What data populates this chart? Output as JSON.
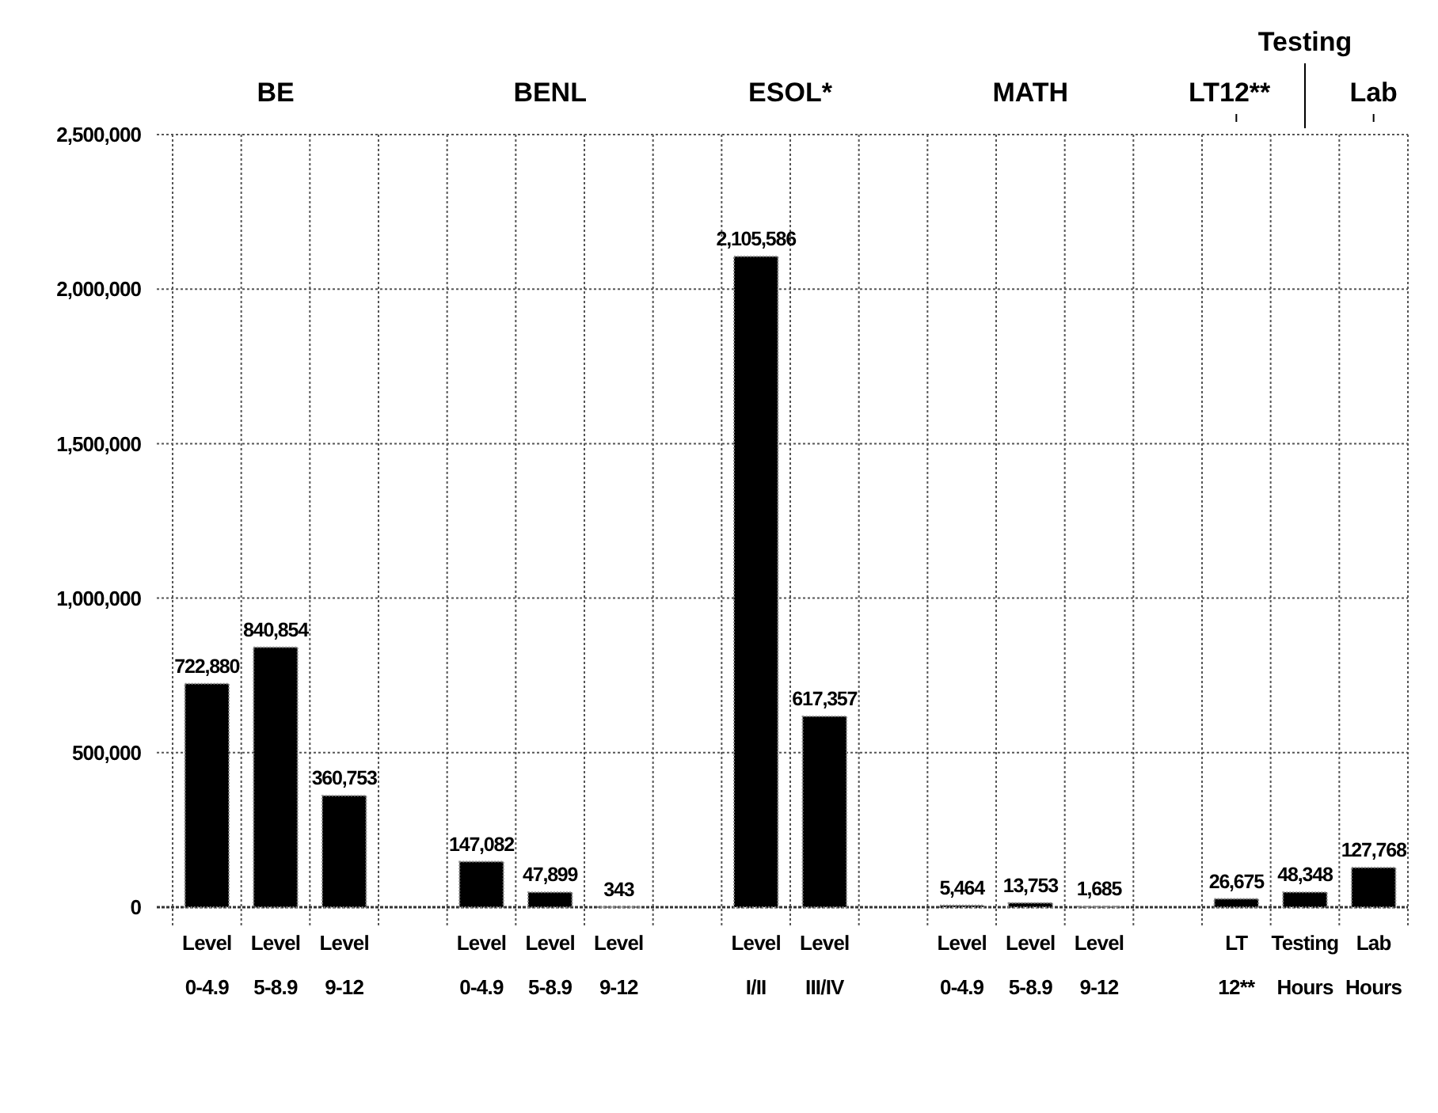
{
  "chart_data": {
    "type": "bar",
    "categories": [
      "Level 0-4.9",
      "Level 5-8.9",
      "Level 9-12",
      null,
      "Level 0-4.9",
      "Level 5-8.9",
      "Level 9-12",
      null,
      "Level I/II",
      "Level III/IV",
      null,
      "Level 0-4.9",
      "Level 5-8.9",
      "Level 9-12",
      null,
      "LT 12**",
      "Testing Hours",
      "Lab Hours"
    ],
    "values": [
      722880,
      840854,
      360753,
      null,
      147082,
      47899,
      343,
      null,
      2105586,
      617357,
      null,
      5464,
      13753,
      1685,
      null,
      26675,
      48348,
      127768
    ],
    "color": "#000000",
    "ylim": [
      0,
      2500000
    ],
    "yticks": [
      {
        "value": 0,
        "label": "0"
      },
      {
        "value": 500000,
        "label": "500,000"
      },
      {
        "value": 1000000,
        "label": "1,000,000"
      },
      {
        "value": 1500000,
        "label": "1,500,000"
      },
      {
        "value": 2000000,
        "label": "2,000,000"
      },
      {
        "value": 2500000,
        "label": "2,500,000"
      }
    ],
    "grid": true,
    "value_labels": [
      "722,880",
      "840,854",
      "360,753",
      null,
      "147,082",
      "47,899",
      "343",
      null,
      "2,105,586",
      "617,357",
      null,
      "5,464",
      "13,753",
      "1,685",
      null,
      "26,675",
      "48,348",
      "127,768"
    ],
    "annotations": [
      "BE",
      "BENL",
      "ESOL*",
      "MATH",
      "LT12**",
      "Testing",
      "Lab"
    ]
  }
}
